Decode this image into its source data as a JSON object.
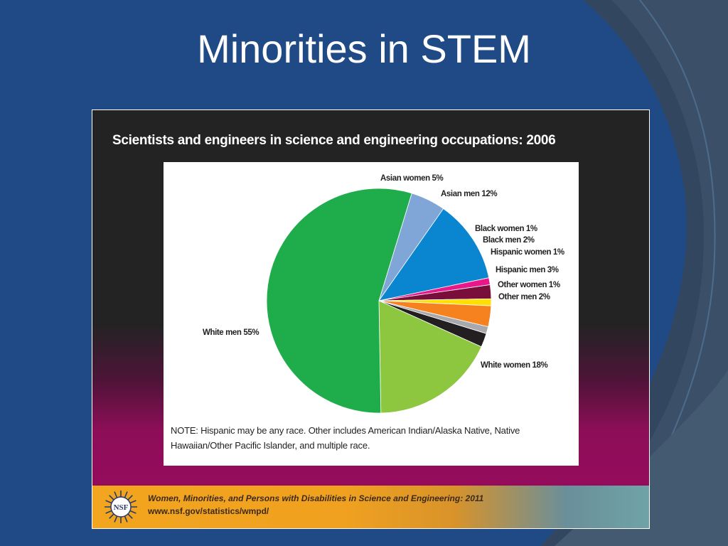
{
  "slide": {
    "title": "Minorities in STEM",
    "colors": {
      "background": "#1f4a86",
      "accent_dark": "#32475f",
      "title_text": "#ffffff"
    }
  },
  "figure": {
    "note": "NOTE: Hispanic may be any race. Other includes American Indian/Alaska Native, Native Hawaiian/Other Pacific Islander, and multiple race.",
    "footer": {
      "logo_icon": "nsf-logo-icon",
      "logo_text": "NSF",
      "source": "Women, Minorities, and Persons with Disabilities in Science and Engineering: 2011",
      "url": "www.nsf.gov/statistics/wmpd/"
    }
  },
  "chart_data": {
    "type": "pie",
    "title": "Scientists and engineers in science and engineering occupations: 2006",
    "unit": "%",
    "slices": [
      {
        "label": "Asian women 5%",
        "category": "Asian women",
        "value": 5,
        "color": "#7fa6d6"
      },
      {
        "label": "Asian men 12%",
        "category": "Asian men",
        "value": 12,
        "color": "#0a85cf"
      },
      {
        "label": "Black women 1%",
        "category": "Black women",
        "value": 1,
        "color": "#e8178a"
      },
      {
        "label": "Black men 2%",
        "category": "Black men",
        "value": 2,
        "color": "#7a0e3a"
      },
      {
        "label": "Hispanic women 1%",
        "category": "Hispanic women",
        "value": 1,
        "color": "#ffe000"
      },
      {
        "label": "Hispanic men 3%",
        "category": "Hispanic men",
        "value": 3,
        "color": "#f5821f"
      },
      {
        "label": "Other women 1%",
        "category": "Other women",
        "value": 1,
        "color": "#a7a9ac"
      },
      {
        "label": "Other men 2%",
        "category": "Other men",
        "value": 2,
        "color": "#231f20"
      },
      {
        "label": "White women 18%",
        "category": "White women",
        "value": 18,
        "color": "#8dc63f"
      },
      {
        "label": "White men 55%",
        "category": "White men",
        "value": 55,
        "color": "#1fad4b"
      }
    ]
  }
}
